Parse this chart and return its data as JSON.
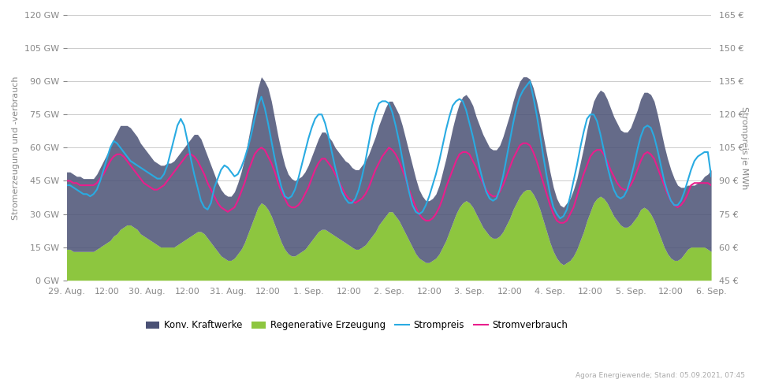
{
  "title": "",
  "ylabel_left": "Stromerzeugung und -verbrauch",
  "ylabel_right": "Strompreis je MWh",
  "ylim_left": [
    0,
    120
  ],
  "ylim_right": [
    45,
    165
  ],
  "yticks_left": [
    0,
    15,
    30,
    45,
    60,
    75,
    90,
    105,
    120
  ],
  "yticks_right": [
    45,
    60,
    75,
    90,
    105,
    120,
    135,
    150,
    165
  ],
  "ytick_labels_left": [
    "0 GW",
    "15 GW",
    "30 GW",
    "45 GW",
    "60 GW",
    "75 GW",
    "90 GW",
    "105 GW",
    "120 GW"
  ],
  "ytick_labels_right": [
    "45 €",
    "60 €",
    "75 €",
    "90 €",
    "105 €",
    "120 €",
    "135 €",
    "150 €",
    "165 €"
  ],
  "color_konv": "#4a5175",
  "color_regen": "#8dc63f",
  "color_preis": "#29abe2",
  "color_verbrauch": "#e91e8c",
  "color_background": "#ffffff",
  "color_grid": "#cccccc",
  "legend_labels": [
    "Konv. Kraftwerke",
    "Regenerative Erzeugung",
    "Strompreis",
    "Stromverbrauch"
  ],
  "source_text": "Agora Energiewende; Stand: 05.09.2021, 07:45",
  "x_tick_labels": [
    "29. Aug.",
    "12:00",
    "30. Aug.",
    "12:00",
    "31. Aug.",
    "12:00",
    "1. Sep.",
    "12:00",
    "2. Sep.",
    "12:00",
    "3. Sep.",
    "12:00",
    "4. Sep.",
    "12:00",
    "5. Sep.",
    "12:00",
    "6. Sep."
  ],
  "n_points": 193,
  "konv_data": [
    35,
    35,
    35,
    34,
    34,
    33,
    33,
    33,
    33,
    34,
    36,
    38,
    40,
    42,
    44,
    46,
    47,
    46,
    45,
    44,
    43,
    42,
    41,
    40,
    39,
    38,
    37,
    37,
    37,
    37,
    38,
    38,
    39,
    40,
    41,
    42,
    43,
    44,
    45,
    44,
    42,
    39,
    37,
    35,
    33,
    31,
    30,
    29,
    29,
    29,
    30,
    32,
    35,
    38,
    42,
    46,
    50,
    54,
    57,
    56,
    55,
    52,
    48,
    44,
    41,
    38,
    36,
    35,
    34,
    34,
    34,
    35,
    36,
    38,
    40,
    42,
    44,
    44,
    43,
    42,
    40,
    39,
    38,
    37,
    37,
    36,
    36,
    36,
    37,
    38,
    39,
    41,
    43,
    45,
    47,
    49,
    50,
    50,
    49,
    48,
    46,
    43,
    40,
    37,
    34,
    31,
    29,
    28,
    28,
    28,
    29,
    31,
    34,
    37,
    40,
    43,
    45,
    47,
    48,
    48,
    47,
    46,
    44,
    43,
    42,
    41,
    40,
    40,
    40,
    41,
    43,
    45,
    47,
    49,
    51,
    52,
    52,
    51,
    50,
    48,
    45,
    42,
    38,
    35,
    32,
    29,
    27,
    26,
    26,
    27,
    28,
    30,
    32,
    35,
    38,
    41,
    44,
    46,
    47,
    48,
    48,
    47,
    46,
    45,
    44,
    43,
    43,
    43,
    44,
    46,
    48,
    50,
    52,
    53,
    54,
    54,
    52,
    49,
    46,
    43,
    40,
    37,
    34,
    32,
    30,
    29,
    28,
    28,
    29,
    30,
    32,
    34,
    37
  ],
  "regen_data": [
    14,
    14,
    13,
    13,
    13,
    13,
    13,
    13,
    13,
    14,
    15,
    16,
    17,
    18,
    20,
    21,
    23,
    24,
    25,
    25,
    24,
    23,
    21,
    20,
    19,
    18,
    17,
    16,
    15,
    15,
    15,
    15,
    15,
    16,
    17,
    18,
    19,
    20,
    21,
    22,
    22,
    21,
    19,
    17,
    15,
    13,
    11,
    10,
    9,
    9,
    10,
    12,
    14,
    17,
    21,
    25,
    29,
    33,
    35,
    34,
    32,
    29,
    25,
    21,
    17,
    14,
    12,
    11,
    11,
    12,
    13,
    14,
    16,
    18,
    20,
    22,
    23,
    23,
    22,
    21,
    20,
    19,
    18,
    17,
    16,
    15,
    14,
    14,
    15,
    16,
    18,
    20,
    22,
    25,
    27,
    29,
    31,
    31,
    29,
    27,
    24,
    21,
    18,
    15,
    12,
    10,
    9,
    8,
    8,
    9,
    10,
    12,
    15,
    18,
    22,
    26,
    30,
    33,
    35,
    36,
    35,
    33,
    30,
    27,
    24,
    22,
    20,
    19,
    19,
    20,
    22,
    25,
    28,
    32,
    35,
    38,
    40,
    41,
    41,
    39,
    36,
    32,
    27,
    22,
    17,
    13,
    10,
    8,
    7,
    8,
    9,
    11,
    14,
    18,
    22,
    27,
    31,
    35,
    37,
    38,
    37,
    35,
    32,
    29,
    27,
    25,
    24,
    24,
    25,
    27,
    29,
    32,
    33,
    32,
    30,
    27,
    23,
    19,
    15,
    12,
    10,
    9,
    9,
    10,
    12,
    14,
    15,
    15,
    15,
    15,
    15,
    14,
    13
  ],
  "verbrauch_data": [
    45,
    45,
    44,
    44,
    43,
    43,
    43,
    43,
    43,
    44,
    46,
    48,
    51,
    54,
    56,
    57,
    57,
    56,
    54,
    52,
    50,
    48,
    46,
    44,
    43,
    42,
    41,
    41,
    42,
    43,
    45,
    47,
    49,
    51,
    53,
    55,
    57,
    57,
    56,
    54,
    51,
    48,
    44,
    41,
    38,
    35,
    33,
    32,
    31,
    32,
    33,
    36,
    40,
    44,
    49,
    53,
    57,
    59,
    60,
    59,
    56,
    53,
    49,
    44,
    40,
    37,
    34,
    33,
    33,
    34,
    36,
    39,
    42,
    46,
    50,
    53,
    55,
    55,
    53,
    51,
    48,
    45,
    42,
    39,
    37,
    36,
    35,
    36,
    37,
    39,
    42,
    46,
    50,
    53,
    56,
    58,
    60,
    59,
    57,
    54,
    50,
    46,
    41,
    37,
    33,
    30,
    28,
    27,
    27,
    28,
    30,
    33,
    37,
    42,
    46,
    50,
    54,
    57,
    58,
    58,
    57,
    54,
    51,
    47,
    44,
    41,
    39,
    38,
    38,
    40,
    43,
    47,
    51,
    55,
    58,
    61,
    62,
    62,
    61,
    58,
    54,
    49,
    44,
    39,
    34,
    30,
    27,
    26,
    26,
    27,
    30,
    33,
    38,
    43,
    48,
    52,
    56,
    58,
    59,
    59,
    57,
    54,
    50,
    47,
    44,
    42,
    41,
    41,
    43,
    46,
    50,
    54,
    57,
    58,
    57,
    55,
    51,
    47,
    43,
    39,
    36,
    34,
    33,
    34,
    36,
    39,
    43,
    44,
    44,
    44,
    44,
    44,
    43
  ],
  "preis_data": [
    88,
    88,
    87,
    86,
    85,
    84,
    84,
    83,
    84,
    86,
    90,
    95,
    100,
    105,
    108,
    107,
    105,
    103,
    101,
    99,
    98,
    97,
    96,
    95,
    94,
    93,
    92,
    91,
    91,
    93,
    97,
    103,
    109,
    115,
    118,
    115,
    108,
    100,
    93,
    87,
    81,
    78,
    77,
    80,
    87,
    91,
    95,
    97,
    96,
    94,
    92,
    93,
    96,
    100,
    105,
    111,
    118,
    124,
    128,
    123,
    116,
    108,
    100,
    93,
    87,
    83,
    82,
    83,
    86,
    91,
    97,
    103,
    109,
    114,
    118,
    120,
    120,
    116,
    110,
    103,
    96,
    90,
    85,
    82,
    80,
    80,
    82,
    86,
    92,
    99,
    107,
    115,
    121,
    125,
    126,
    126,
    125,
    121,
    115,
    108,
    100,
    92,
    85,
    79,
    76,
    75,
    76,
    79,
    83,
    88,
    93,
    99,
    106,
    113,
    119,
    124,
    126,
    127,
    126,
    122,
    116,
    110,
    103,
    96,
    90,
    85,
    82,
    81,
    82,
    86,
    92,
    100,
    108,
    116,
    123,
    128,
    131,
    133,
    135,
    128,
    120,
    111,
    101,
    92,
    84,
    78,
    75,
    73,
    74,
    77,
    83,
    90,
    97,
    105,
    112,
    118,
    120,
    120,
    117,
    111,
    104,
    97,
    91,
    86,
    83,
    82,
    83,
    86,
    91,
    97,
    104,
    110,
    114,
    115,
    114,
    110,
    104,
    97,
    90,
    85,
    81,
    79,
    79,
    81,
    85,
    90,
    95,
    99,
    101,
    102,
    103,
    103,
    92
  ]
}
